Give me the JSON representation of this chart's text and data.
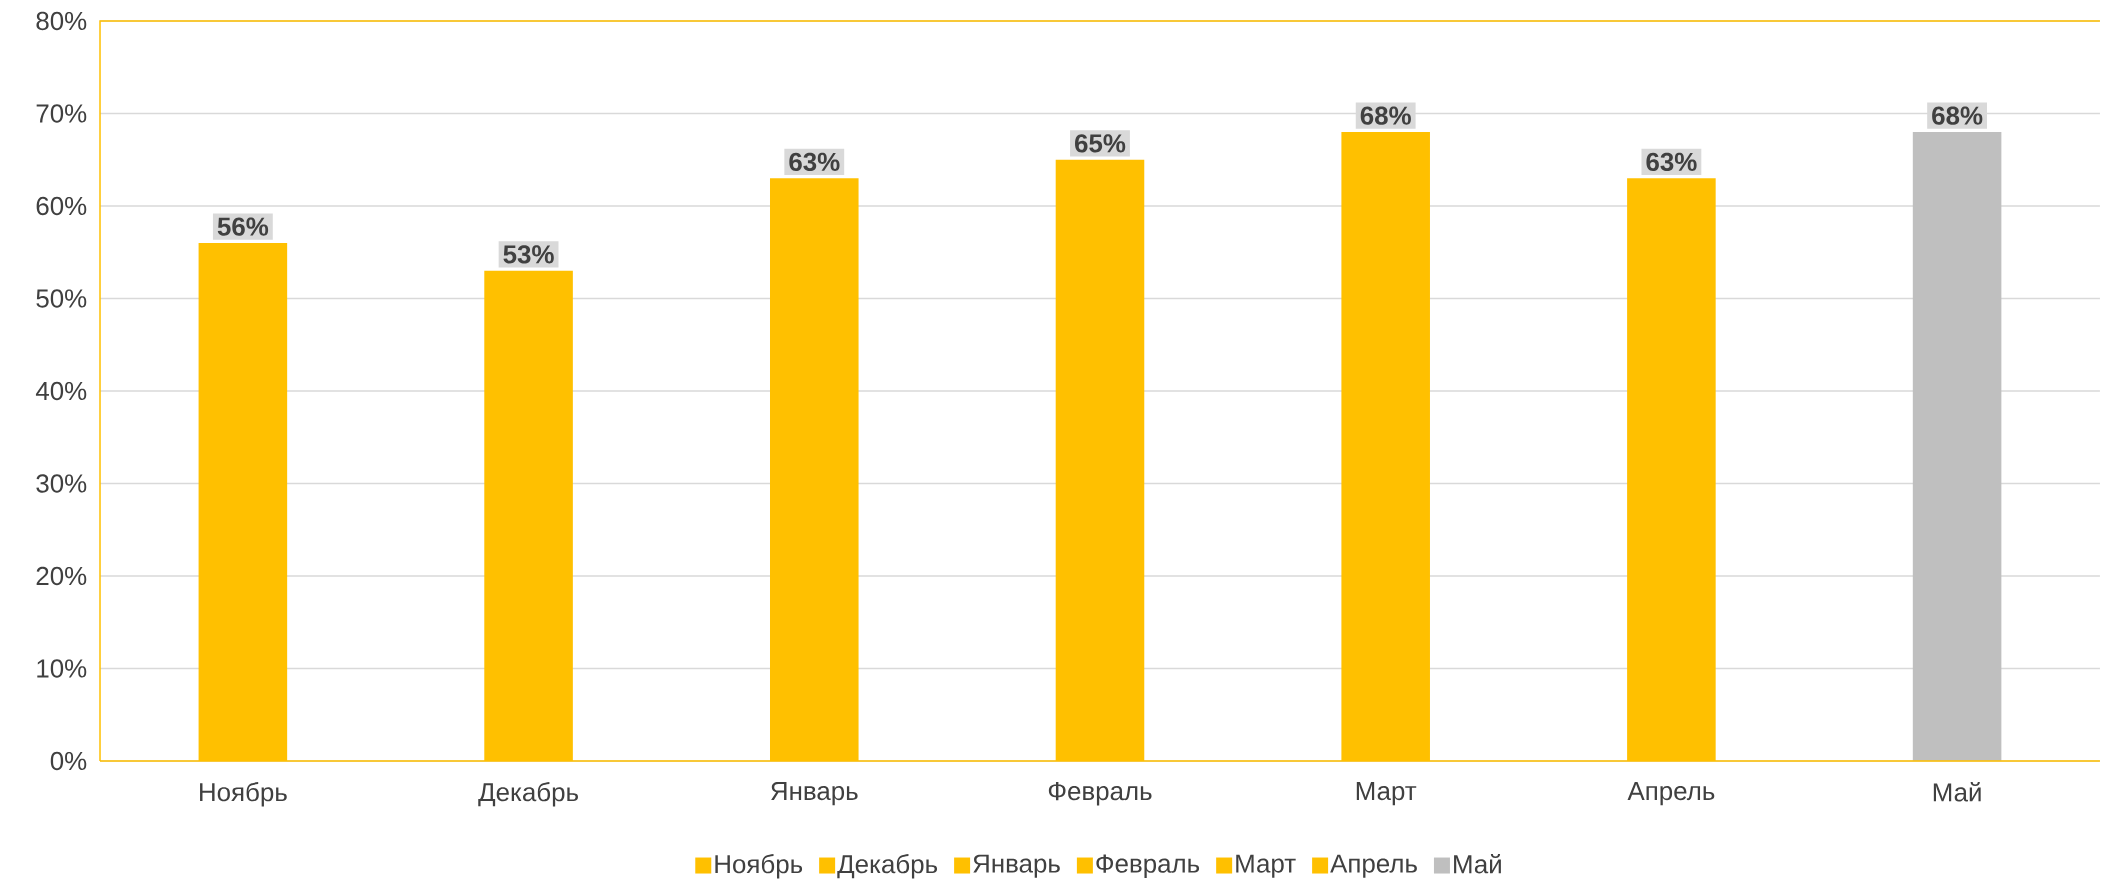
{
  "chart_data": {
    "type": "bar",
    "categories": [
      "Ноябрь",
      "Декабрь",
      "Январь",
      "Февраль",
      "Март",
      "Апрель",
      "Май"
    ],
    "series": [
      {
        "name": "Ноябрь",
        "color": "#ffc000",
        "values": [
          56,
          null,
          null,
          null,
          null,
          null,
          null
        ],
        "value_labels": [
          "56%",
          null,
          null,
          null,
          null,
          null,
          null
        ]
      },
      {
        "name": "Декабрь",
        "color": "#ffc000",
        "values": [
          null,
          53,
          null,
          null,
          null,
          null,
          null
        ],
        "value_labels": [
          null,
          "53%",
          null,
          null,
          null,
          null,
          null
        ]
      },
      {
        "name": "Январь",
        "color": "#ffc000",
        "values": [
          null,
          null,
          63,
          null,
          null,
          null,
          null
        ],
        "value_labels": [
          null,
          null,
          "63%",
          null,
          null,
          null,
          null
        ]
      },
      {
        "name": "Февраль",
        "color": "#ffc000",
        "values": [
          null,
          null,
          null,
          65,
          null,
          null,
          null
        ],
        "value_labels": [
          null,
          null,
          null,
          "65%",
          null,
          null,
          null
        ]
      },
      {
        "name": "Март",
        "color": "#ffc000",
        "values": [
          null,
          null,
          null,
          null,
          68,
          null,
          null
        ],
        "value_labels": [
          null,
          null,
          null,
          null,
          "68%",
          null,
          null
        ]
      },
      {
        "name": "Апрель",
        "color": "#ffc000",
        "values": [
          null,
          null,
          null,
          null,
          null,
          63,
          null
        ],
        "value_labels": [
          null,
          null,
          null,
          null,
          null,
          "63%",
          null
        ]
      },
      {
        "name": "Май",
        "color": "#bfbfbf",
        "values": [
          null,
          null,
          null,
          null,
          null,
          null,
          68
        ],
        "value_labels": [
          null,
          null,
          null,
          null,
          null,
          null,
          "68%"
        ]
      }
    ],
    "ylim": [
      0,
      80
    ],
    "yticks": [
      {
        "value": 0,
        "label": "0%"
      },
      {
        "value": 10,
        "label": "10%"
      },
      {
        "value": 20,
        "label": "20%"
      },
      {
        "value": 30,
        "label": "30%"
      },
      {
        "value": 40,
        "label": "40%"
      },
      {
        "value": 50,
        "label": "50%"
      },
      {
        "value": 60,
        "label": "60%"
      },
      {
        "value": 70,
        "label": "70%"
      },
      {
        "value": 80,
        "label": "80%"
      }
    ],
    "grid": "y",
    "legend": "bottom"
  }
}
